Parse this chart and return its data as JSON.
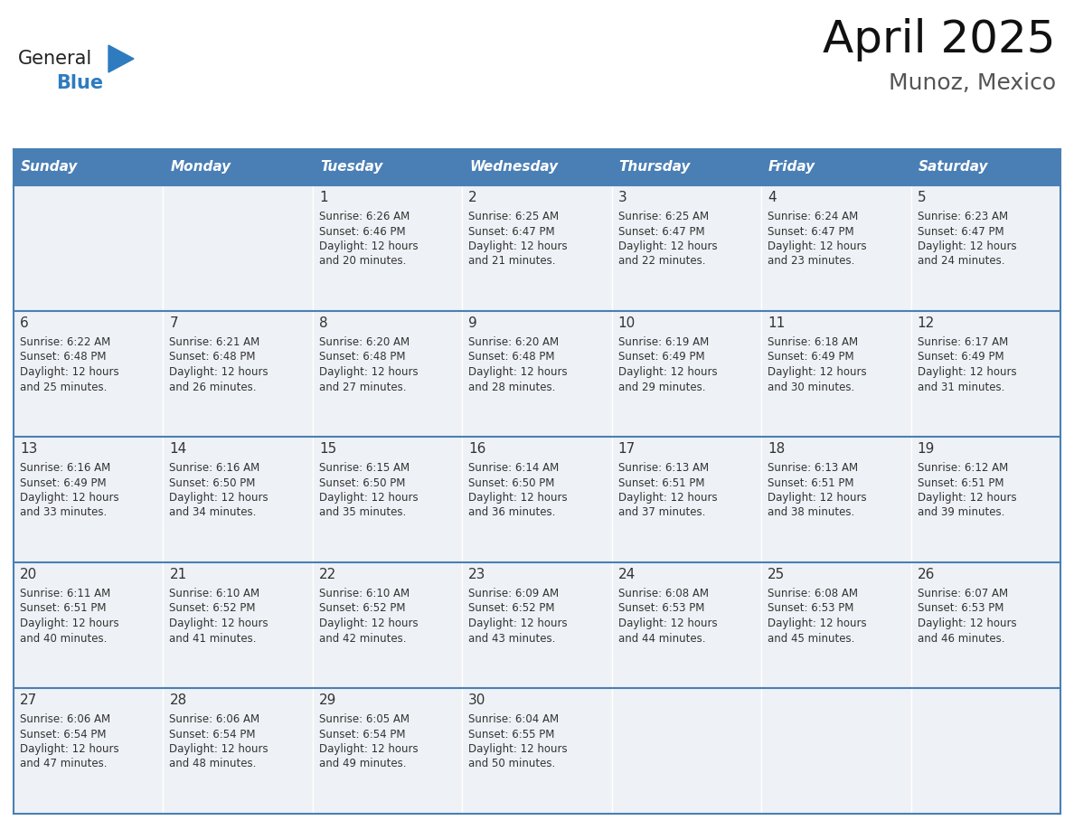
{
  "title": "April 2025",
  "subtitle": "Munoz, Mexico",
  "header_bg": "#4a7fb5",
  "header_text_color": "#ffffff",
  "cell_bg_light": "#eef1f5",
  "cell_bg_white": "#ffffff",
  "border_color": "#4a7fb5",
  "text_color": "#333333",
  "days_of_week": [
    "Sunday",
    "Monday",
    "Tuesday",
    "Wednesday",
    "Thursday",
    "Friday",
    "Saturday"
  ],
  "weeks": [
    [
      {
        "day": null,
        "sunrise": null,
        "sunset": null,
        "daylight_min": null
      },
      {
        "day": null,
        "sunrise": null,
        "sunset": null,
        "daylight_min": null
      },
      {
        "day": 1,
        "sunrise": "6:26 AM",
        "sunset": "6:46 PM",
        "daylight_min": 20
      },
      {
        "day": 2,
        "sunrise": "6:25 AM",
        "sunset": "6:47 PM",
        "daylight_min": 21
      },
      {
        "day": 3,
        "sunrise": "6:25 AM",
        "sunset": "6:47 PM",
        "daylight_min": 22
      },
      {
        "day": 4,
        "sunrise": "6:24 AM",
        "sunset": "6:47 PM",
        "daylight_min": 23
      },
      {
        "day": 5,
        "sunrise": "6:23 AM",
        "sunset": "6:47 PM",
        "daylight_min": 24
      }
    ],
    [
      {
        "day": 6,
        "sunrise": "6:22 AM",
        "sunset": "6:48 PM",
        "daylight_min": 25
      },
      {
        "day": 7,
        "sunrise": "6:21 AM",
        "sunset": "6:48 PM",
        "daylight_min": 26
      },
      {
        "day": 8,
        "sunrise": "6:20 AM",
        "sunset": "6:48 PM",
        "daylight_min": 27
      },
      {
        "day": 9,
        "sunrise": "6:20 AM",
        "sunset": "6:48 PM",
        "daylight_min": 28
      },
      {
        "day": 10,
        "sunrise": "6:19 AM",
        "sunset": "6:49 PM",
        "daylight_min": 29
      },
      {
        "day": 11,
        "sunrise": "6:18 AM",
        "sunset": "6:49 PM",
        "daylight_min": 30
      },
      {
        "day": 12,
        "sunrise": "6:17 AM",
        "sunset": "6:49 PM",
        "daylight_min": 31
      }
    ],
    [
      {
        "day": 13,
        "sunrise": "6:16 AM",
        "sunset": "6:49 PM",
        "daylight_min": 33
      },
      {
        "day": 14,
        "sunrise": "6:16 AM",
        "sunset": "6:50 PM",
        "daylight_min": 34
      },
      {
        "day": 15,
        "sunrise": "6:15 AM",
        "sunset": "6:50 PM",
        "daylight_min": 35
      },
      {
        "day": 16,
        "sunrise": "6:14 AM",
        "sunset": "6:50 PM",
        "daylight_min": 36
      },
      {
        "day": 17,
        "sunrise": "6:13 AM",
        "sunset": "6:51 PM",
        "daylight_min": 37
      },
      {
        "day": 18,
        "sunrise": "6:13 AM",
        "sunset": "6:51 PM",
        "daylight_min": 38
      },
      {
        "day": 19,
        "sunrise": "6:12 AM",
        "sunset": "6:51 PM",
        "daylight_min": 39
      }
    ],
    [
      {
        "day": 20,
        "sunrise": "6:11 AM",
        "sunset": "6:51 PM",
        "daylight_min": 40
      },
      {
        "day": 21,
        "sunrise": "6:10 AM",
        "sunset": "6:52 PM",
        "daylight_min": 41
      },
      {
        "day": 22,
        "sunrise": "6:10 AM",
        "sunset": "6:52 PM",
        "daylight_min": 42
      },
      {
        "day": 23,
        "sunrise": "6:09 AM",
        "sunset": "6:52 PM",
        "daylight_min": 43
      },
      {
        "day": 24,
        "sunrise": "6:08 AM",
        "sunset": "6:53 PM",
        "daylight_min": 44
      },
      {
        "day": 25,
        "sunrise": "6:08 AM",
        "sunset": "6:53 PM",
        "daylight_min": 45
      },
      {
        "day": 26,
        "sunrise": "6:07 AM",
        "sunset": "6:53 PM",
        "daylight_min": 46
      }
    ],
    [
      {
        "day": 27,
        "sunrise": "6:06 AM",
        "sunset": "6:54 PM",
        "daylight_min": 47
      },
      {
        "day": 28,
        "sunrise": "6:06 AM",
        "sunset": "6:54 PM",
        "daylight_min": 48
      },
      {
        "day": 29,
        "sunrise": "6:05 AM",
        "sunset": "6:54 PM",
        "daylight_min": 49
      },
      {
        "day": 30,
        "sunrise": "6:04 AM",
        "sunset": "6:55 PM",
        "daylight_min": 50
      },
      {
        "day": null,
        "sunrise": null,
        "sunset": null,
        "daylight_min": null
      },
      {
        "day": null,
        "sunrise": null,
        "sunset": null,
        "daylight_min": null
      },
      {
        "day": null,
        "sunrise": null,
        "sunset": null,
        "daylight_min": null
      }
    ]
  ],
  "logo_text1": "General",
  "logo_text2": "Blue",
  "logo_color1": "#222222",
  "logo_color2": "#2e7bbf",
  "logo_triangle_color": "#2e7bbf",
  "title_fontsize": 36,
  "subtitle_fontsize": 18,
  "header_fontsize": 11,
  "day_num_fontsize": 11,
  "cell_text_fontsize": 8.5
}
